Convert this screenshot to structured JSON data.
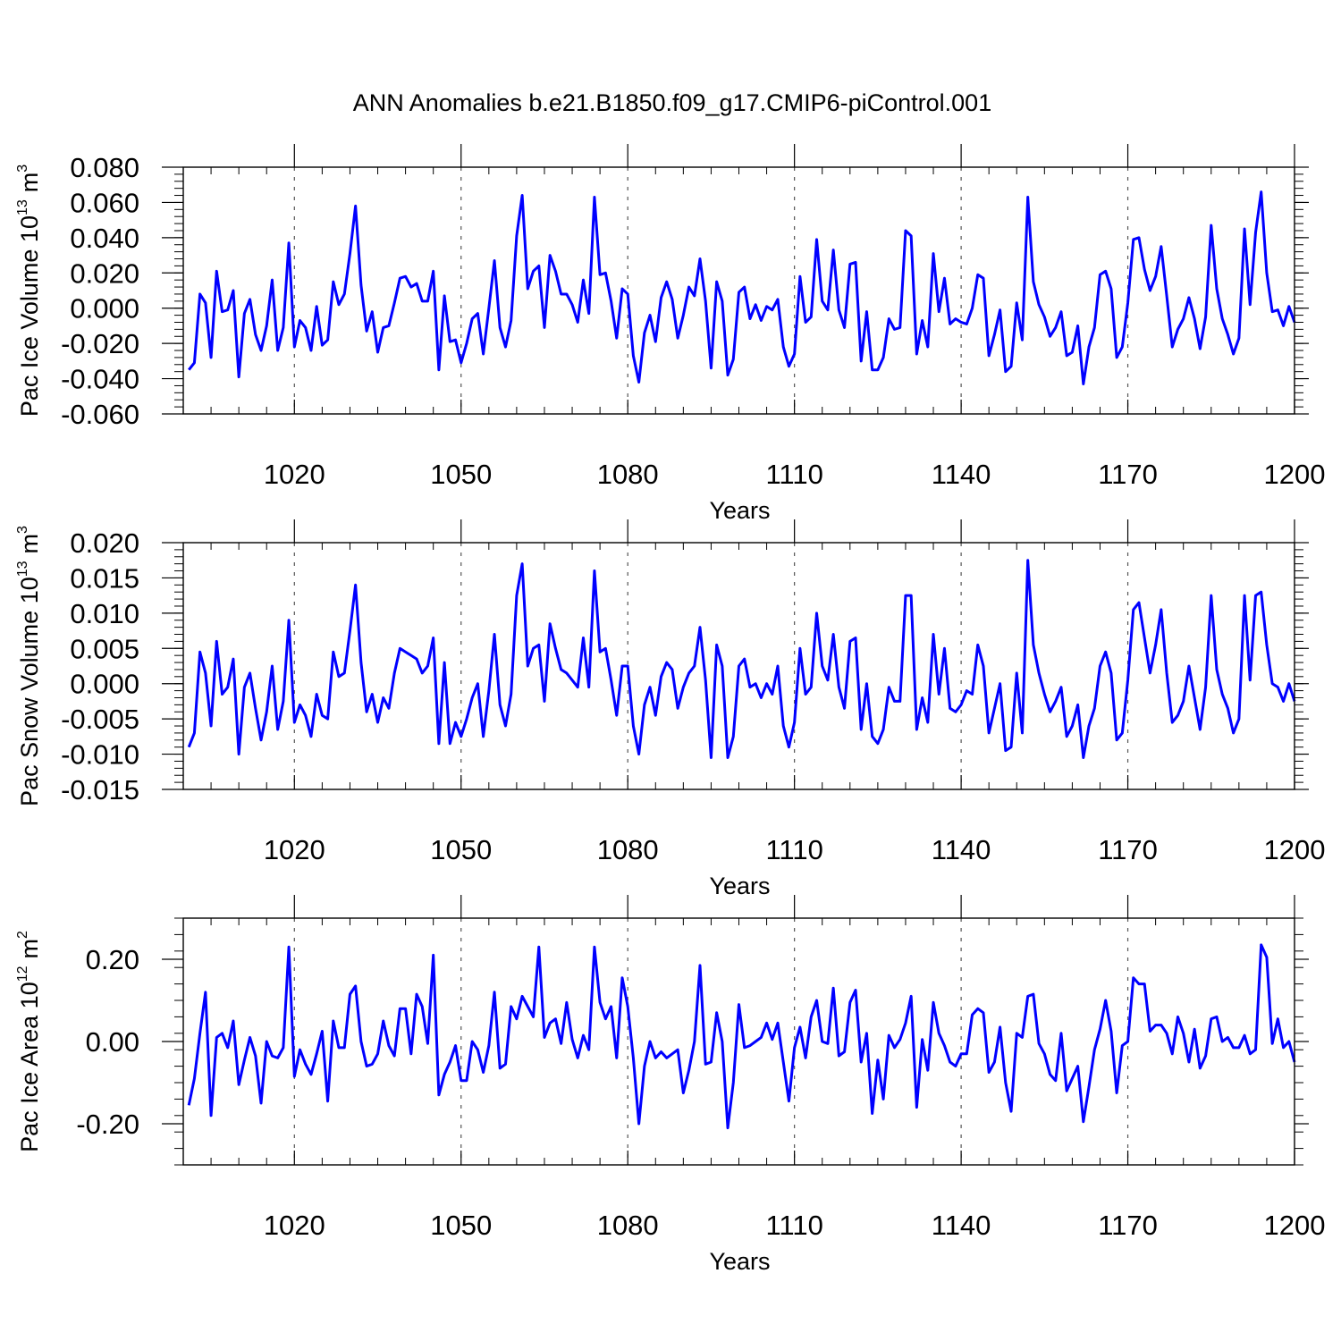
{
  "title": "ANN Anomalies b.e21.B1850.f09_g17.CMIP6-piControl.001",
  "colors": {
    "line": "#0000ff",
    "grid": "#555555",
    "axis": "#000000",
    "background": "#ffffff"
  },
  "chart_data": [
    {
      "type": "line",
      "name": "pac-ice-volume",
      "xlabel": "Years",
      "ylabel": {
        "prefix": "Pac Ice Volume 10",
        "exponent": "13",
        "unit": "m",
        "unit_exponent": "3"
      },
      "xlim": [
        1000,
        1200
      ],
      "ylim": [
        -0.06,
        0.08
      ],
      "xticks": [
        1020,
        1050,
        1080,
        1110,
        1140,
        1170,
        1200
      ],
      "xtick_labels": [
        "1020",
        "1050",
        "1080",
        "1110",
        "1140",
        "1170",
        "1200"
      ],
      "yticks": [
        -0.06,
        -0.04,
        -0.02,
        0.0,
        0.02,
        0.04,
        0.06,
        0.08
      ],
      "ytick_labels": [
        "-0.060",
        "-0.040",
        "-0.020",
        "0.000",
        "0.020",
        "0.040",
        "0.060",
        "0.080"
      ],
      "grid": "vertical dashed at x ticks",
      "series": [
        {
          "name": "Pac Ice Volume",
          "x_start": 1001,
          "x_step": 1,
          "values": [
            -0.035,
            -0.031,
            0.008,
            0.003,
            -0.028,
            0.021,
            -0.002,
            -0.001,
            0.01,
            -0.039,
            -0.003,
            0.005,
            -0.015,
            -0.024,
            -0.01,
            0.016,
            -0.024,
            -0.011,
            0.037,
            -0.022,
            -0.007,
            -0.011,
            -0.024,
            0.001,
            -0.021,
            -0.018,
            0.015,
            0.002,
            0.008,
            0.031,
            0.058,
            0.013,
            -0.013,
            -0.002,
            -0.025,
            -0.011,
            -0.01,
            0.003,
            0.017,
            0.018,
            0.012,
            0.014,
            0.004,
            0.004,
            0.021,
            -0.035,
            0.007,
            -0.019,
            -0.018,
            -0.031,
            -0.02,
            -0.006,
            -0.003,
            -0.026,
            0.0,
            0.027,
            -0.011,
            -0.022,
            -0.007,
            0.041,
            0.064,
            0.011,
            0.021,
            0.024,
            -0.011,
            0.03,
            0.021,
            0.008,
            0.008,
            0.002,
            -0.008,
            0.016,
            -0.003,
            0.063,
            0.019,
            0.02,
            0.004,
            -0.017,
            0.011,
            0.008,
            -0.027,
            -0.042,
            -0.014,
            -0.004,
            -0.019,
            0.006,
            0.015,
            0.005,
            -0.017,
            -0.004,
            0.012,
            0.007,
            0.028,
            0.004,
            -0.034,
            0.015,
            0.004,
            -0.038,
            -0.029,
            0.009,
            0.012,
            -0.006,
            0.002,
            -0.007,
            0.001,
            -0.001,
            0.005,
            -0.022,
            -0.033,
            -0.026,
            0.018,
            -0.008,
            -0.005,
            0.039,
            0.004,
            -0.001,
            0.033,
            -0.001,
            -0.011,
            0.025,
            0.026,
            -0.03,
            -0.002,
            -0.035,
            -0.035,
            -0.028,
            -0.006,
            -0.012,
            -0.011,
            0.044,
            0.041,
            -0.026,
            -0.007,
            -0.022,
            0.031,
            -0.002,
            0.017,
            -0.009,
            -0.006,
            -0.008,
            -0.009,
            0.0,
            0.019,
            0.017,
            -0.027,
            -0.015,
            -0.001,
            -0.036,
            -0.033,
            0.003,
            -0.018,
            0.063,
            0.015,
            0.002,
            -0.005,
            -0.016,
            -0.011,
            -0.002,
            -0.027,
            -0.025,
            -0.01,
            -0.043,
            -0.022,
            -0.011,
            0.019,
            0.021,
            0.011,
            -0.028,
            -0.022,
            0.003,
            0.039,
            0.04,
            0.022,
            0.01,
            0.018,
            0.035,
            0.007,
            -0.022,
            -0.012,
            -0.006,
            0.006,
            -0.006,
            -0.023,
            -0.005,
            0.047,
            0.011,
            -0.006,
            -0.015,
            -0.026,
            -0.017,
            0.045,
            0.002,
            0.043,
            0.066,
            0.02,
            -0.002,
            -0.001,
            -0.01,
            0.001,
            -0.008
          ]
        }
      ]
    },
    {
      "type": "line",
      "name": "pac-snow-volume",
      "xlabel": "Years",
      "ylabel": {
        "prefix": "Pac Snow Volume 10",
        "exponent": "13",
        "unit": "m",
        "unit_exponent": "3"
      },
      "xlim": [
        1000,
        1200
      ],
      "ylim": [
        -0.015,
        0.02
      ],
      "xticks": [
        1020,
        1050,
        1080,
        1110,
        1140,
        1170,
        1200
      ],
      "xtick_labels": [
        "1020",
        "1050",
        "1080",
        "1110",
        "1140",
        "1170",
        "1200"
      ],
      "yticks": [
        -0.015,
        -0.01,
        -0.005,
        0.0,
        0.005,
        0.01,
        0.015,
        0.02
      ],
      "ytick_labels": [
        "-0.015",
        "-0.010",
        "-0.005",
        "0.000",
        "0.005",
        "0.010",
        "0.015",
        "0.020"
      ],
      "grid": "vertical dashed at x ticks",
      "series": [
        {
          "name": "Pac Snow Volume",
          "x_start": 1001,
          "x_step": 1,
          "values": [
            -0.009,
            -0.007,
            0.0045,
            0.0015,
            -0.006,
            0.006,
            -0.0015,
            -0.0005,
            0.0035,
            -0.01,
            -0.0005,
            0.0015,
            -0.0035,
            -0.008,
            -0.004,
            0.0025,
            -0.0065,
            -0.0025,
            0.009,
            -0.0055,
            -0.003,
            -0.0045,
            -0.0075,
            -0.0015,
            -0.0045,
            -0.005,
            0.0045,
            0.001,
            0.0015,
            0.0075,
            0.014,
            0.003,
            -0.004,
            -0.0015,
            -0.0055,
            -0.002,
            -0.0035,
            0.0015,
            0.005,
            0.0045,
            0.004,
            0.0035,
            0.0015,
            0.0025,
            0.0065,
            -0.0085,
            0.003,
            -0.0085,
            -0.0055,
            -0.0075,
            -0.005,
            -0.002,
            0.0,
            -0.0075,
            -0.001,
            0.007,
            -0.003,
            -0.006,
            -0.0015,
            0.0125,
            0.017,
            0.0025,
            0.005,
            0.0055,
            -0.0025,
            0.0085,
            0.005,
            0.002,
            0.0015,
            0.0005,
            -0.0005,
            0.0065,
            -0.0005,
            0.016,
            0.0045,
            0.005,
            0.0005,
            -0.0045,
            0.0025,
            0.0025,
            -0.006,
            -0.01,
            -0.003,
            -0.0005,
            -0.0045,
            0.001,
            0.003,
            0.002,
            -0.0035,
            -0.0005,
            0.0015,
            0.0025,
            0.008,
            0.0005,
            -0.0105,
            0.0055,
            0.0025,
            -0.0105,
            -0.0075,
            0.0025,
            0.0035,
            -0.0005,
            0.0,
            -0.002,
            0.0,
            -0.0015,
            0.0025,
            -0.006,
            -0.009,
            -0.0055,
            0.005,
            -0.0015,
            -0.0005,
            0.01,
            0.0025,
            0.0005,
            0.007,
            -0.0005,
            -0.0035,
            0.006,
            0.0065,
            -0.0065,
            0.0,
            -0.0075,
            -0.0085,
            -0.0065,
            -0.0005,
            -0.0025,
            -0.0025,
            0.0125,
            0.0125,
            -0.0065,
            -0.002,
            -0.0055,
            0.007,
            -0.0015,
            0.005,
            -0.0035,
            -0.004,
            -0.003,
            -0.001,
            -0.0015,
            0.0055,
            0.0025,
            -0.007,
            -0.0035,
            0.0,
            -0.0095,
            -0.009,
            0.0015,
            -0.007,
            0.0175,
            0.0055,
            0.0015,
            -0.0015,
            -0.004,
            -0.0025,
            -0.0005,
            -0.0075,
            -0.006,
            -0.003,
            -0.0105,
            -0.006,
            -0.0035,
            0.0025,
            0.0045,
            0.0015,
            -0.008,
            -0.007,
            0.0005,
            0.0105,
            0.0115,
            0.0065,
            0.0015,
            0.0055,
            0.0105,
            0.0015,
            -0.0055,
            -0.0045,
            -0.0025,
            0.0025,
            -0.002,
            -0.0065,
            -0.0005,
            0.0125,
            0.002,
            -0.0015,
            -0.0035,
            -0.007,
            -0.005,
            0.0125,
            0.0005,
            0.0125,
            0.013,
            0.0055,
            0.0,
            -0.0005,
            -0.0025,
            0.0,
            -0.0025
          ]
        }
      ]
    },
    {
      "type": "line",
      "name": "pac-ice-area",
      "xlabel": "Years",
      "ylabel": {
        "prefix": "Pac Ice Area 10",
        "exponent": "12",
        "unit": "m",
        "unit_exponent": "2"
      },
      "xlim": [
        1000,
        1200
      ],
      "ylim": [
        -0.3,
        0.3
      ],
      "xticks": [
        1020,
        1050,
        1080,
        1110,
        1140,
        1170,
        1200
      ],
      "xtick_labels": [
        "1020",
        "1050",
        "1080",
        "1110",
        "1140",
        "1170",
        "1200"
      ],
      "yticks": [
        -0.2,
        0.0,
        0.2
      ],
      "ytick_labels": [
        "-0.20",
        "0.00",
        "0.20"
      ],
      "grid": "vertical dashed at x ticks",
      "series": [
        {
          "name": "Pac Ice Area",
          "x_start": 1001,
          "x_step": 1,
          "values": [
            -0.155,
            -0.09,
            0.02,
            0.12,
            -0.18,
            0.01,
            0.02,
            -0.015,
            0.05,
            -0.105,
            -0.045,
            0.01,
            -0.035,
            -0.15,
            0.0,
            -0.035,
            -0.04,
            -0.015,
            0.23,
            -0.085,
            -0.02,
            -0.055,
            -0.08,
            -0.03,
            0.025,
            -0.145,
            0.05,
            -0.015,
            -0.015,
            0.115,
            0.135,
            0.0,
            -0.06,
            -0.055,
            -0.03,
            0.05,
            -0.01,
            -0.035,
            0.08,
            0.08,
            -0.03,
            0.115,
            0.085,
            -0.005,
            0.21,
            -0.13,
            -0.08,
            -0.05,
            -0.01,
            -0.095,
            -0.095,
            0.0,
            -0.02,
            -0.075,
            -0.01,
            0.12,
            -0.065,
            -0.055,
            0.085,
            0.055,
            0.11,
            0.085,
            0.06,
            0.23,
            0.01,
            0.045,
            0.055,
            -0.005,
            0.095,
            0.005,
            -0.04,
            0.015,
            -0.02,
            0.23,
            0.095,
            0.055,
            0.085,
            -0.04,
            0.155,
            0.085,
            -0.04,
            -0.2,
            -0.06,
            0.0,
            -0.04,
            -0.025,
            -0.04,
            -0.03,
            -0.02,
            -0.125,
            -0.07,
            0.0,
            0.185,
            -0.055,
            -0.05,
            0.07,
            0.0,
            -0.21,
            -0.1,
            0.09,
            -0.015,
            -0.01,
            0.0,
            0.01,
            0.045,
            0.005,
            0.045,
            -0.05,
            -0.145,
            -0.015,
            0.035,
            -0.04,
            0.06,
            0.1,
            0.0,
            -0.005,
            0.13,
            -0.035,
            -0.025,
            0.095,
            0.125,
            -0.05,
            0.02,
            -0.175,
            -0.045,
            -0.14,
            0.015,
            -0.015,
            0.005,
            0.045,
            0.11,
            -0.16,
            0.005,
            -0.07,
            0.095,
            0.02,
            -0.01,
            -0.05,
            -0.06,
            -0.03,
            -0.03,
            0.065,
            0.08,
            0.07,
            -0.075,
            -0.05,
            0.035,
            -0.1,
            -0.17,
            0.02,
            0.01,
            0.11,
            0.115,
            -0.005,
            -0.03,
            -0.08,
            -0.095,
            0.02,
            -0.12,
            -0.09,
            -0.06,
            -0.195,
            -0.11,
            -0.02,
            0.03,
            0.1,
            0.025,
            -0.125,
            -0.01,
            0.0,
            0.155,
            0.14,
            0.14,
            0.025,
            0.04,
            0.04,
            0.02,
            -0.03,
            0.06,
            0.02,
            -0.05,
            0.03,
            -0.065,
            -0.035,
            0.055,
            0.06,
            0.0,
            0.01,
            -0.015,
            -0.015,
            0.015,
            -0.03,
            -0.02,
            0.235,
            0.205,
            -0.005,
            0.055,
            -0.015,
            0.0,
            -0.05
          ]
        }
      ]
    }
  ]
}
